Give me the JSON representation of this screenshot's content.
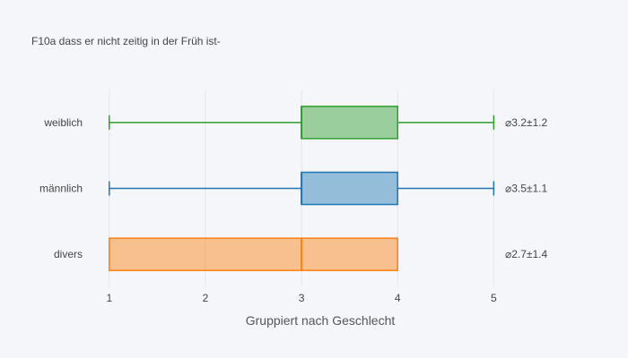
{
  "chart_data": {
    "type": "box",
    "orientation": "horizontal",
    "title": "F10a dass er nicht zeitig in der Früh ist-",
    "xlabel": "Gruppiert nach Geschlecht",
    "xlim": [
      0.75,
      5.65
    ],
    "xticks": [
      "1",
      "2",
      "3",
      "4",
      "5"
    ],
    "xtick_values": [
      1,
      2,
      3,
      4,
      5
    ],
    "grid": true,
    "legend": "none",
    "background": "#f5f6fa",
    "series": [
      {
        "category": "weiblich",
        "min": 1,
        "q1": 3,
        "median": 3,
        "q3": 4,
        "max": 5,
        "color": "#2ca02c",
        "stat_label": "⌀3.2±1.2"
      },
      {
        "category": "männlich",
        "min": 1,
        "q1": 3,
        "median": 3,
        "q3": 4,
        "max": 5,
        "color": "#1f77b4",
        "stat_label": "⌀3.5±1.1"
      },
      {
        "category": "divers",
        "min": 1,
        "q1": 1,
        "median": 3,
        "q3": 4,
        "max": 4,
        "color": "#ff7f0e",
        "stat_label": "⌀2.7±1.4"
      }
    ]
  }
}
